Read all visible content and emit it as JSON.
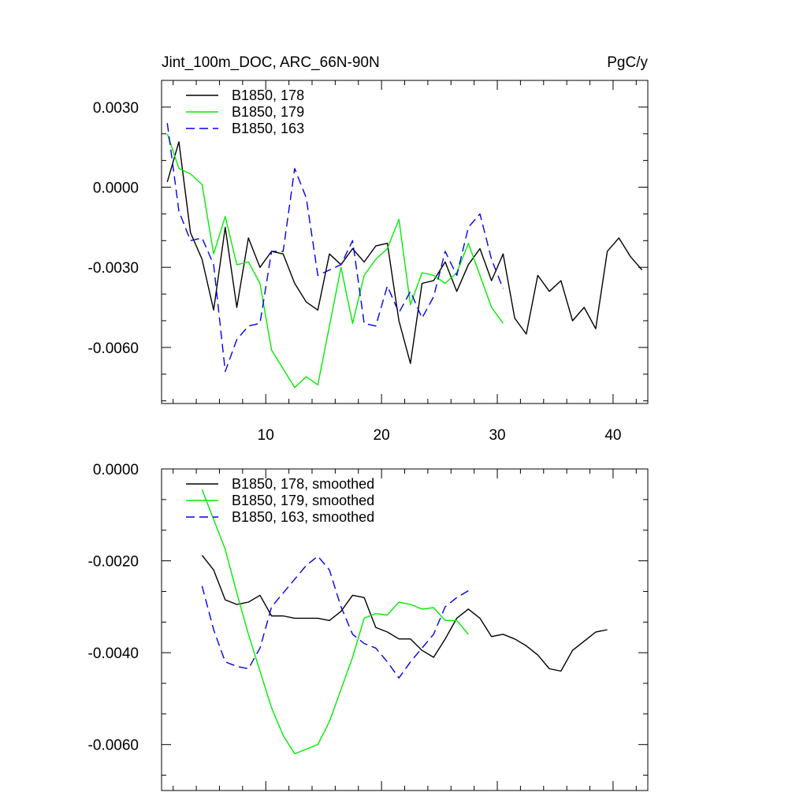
{
  "chart_data": [
    {
      "type": "line",
      "title": "Jint_100m_DOC, ARC_66N-90N",
      "units": "PgC/y",
      "xlabel": "",
      "ylabel": "",
      "xlim": [
        1,
        43
      ],
      "ylim": [
        -0.0081,
        0.004
      ],
      "xticks": [
        10,
        20,
        30,
        40
      ],
      "yticks": [
        0.003,
        0.0,
        -0.003,
        -0.006
      ],
      "ytick_labels": [
        "0.0030",
        "0.0000",
        "-0.0030",
        "-0.0060"
      ],
      "legend_position": "top-left",
      "series": [
        {
          "name": "B1850, 178",
          "color": "#000000",
          "dash": "solid",
          "x": [
            1.5,
            2.5,
            3.5,
            4.5,
            5.5,
            6.5,
            7.5,
            8.5,
            9.5,
            10.5,
            11.5,
            12.5,
            13.5,
            14.5,
            15.5,
            16.5,
            17.5,
            18.5,
            19.5,
            20.5,
            21.5,
            22.5,
            23.5,
            24.5,
            25.5,
            26.5,
            27.5,
            28.5,
            29.5,
            30.5,
            31.5,
            32.5,
            33.5,
            34.5,
            35.5,
            36.5,
            37.5,
            38.5,
            39.5,
            40.5,
            41.5,
            42.5
          ],
          "y": [
            0.0002,
            0.0017,
            -0.0017,
            -0.0027,
            -0.0046,
            -0.0015,
            -0.0045,
            -0.0019,
            -0.003,
            -0.0024,
            -0.0025,
            -0.0036,
            -0.0043,
            -0.0046,
            -0.0025,
            -0.0029,
            -0.0023,
            -0.0028,
            -0.0022,
            -0.0021,
            -0.005,
            -0.0066,
            -0.0036,
            -0.0035,
            -0.0028,
            -0.0039,
            -0.0029,
            -0.0023,
            -0.0035,
            -0.0025,
            -0.0049,
            -0.0055,
            -0.0033,
            -0.0039,
            -0.0035,
            -0.005,
            -0.0045,
            -0.0053,
            -0.0024,
            -0.0019,
            -0.0026,
            -0.0031
          ]
        },
        {
          "name": "B1850, 179",
          "color": "#00ee00",
          "dash": "solid",
          "x": [
            1.5,
            2.5,
            3.5,
            4.5,
            5.5,
            6.5,
            7.5,
            8.5,
            9.5,
            10.5,
            11.5,
            12.5,
            13.5,
            14.5,
            15.5,
            16.5,
            17.5,
            18.5,
            19.5,
            20.5,
            21.5,
            22.5,
            23.5,
            24.5,
            25.5,
            26.5,
            27.5,
            28.5,
            29.5,
            30.5
          ],
          "y": [
            0.002,
            0.0007,
            0.0005,
            0.0001,
            -0.0025,
            -0.0011,
            -0.0029,
            -0.0028,
            -0.0036,
            -0.0061,
            -0.0068,
            -0.0075,
            -0.0071,
            -0.0074,
            -0.0052,
            -0.003,
            -0.0051,
            -0.0033,
            -0.0027,
            -0.0023,
            -0.0012,
            -0.0044,
            -0.0032,
            -0.0033,
            -0.0036,
            -0.0032,
            -0.0021,
            -0.0033,
            -0.0045,
            -0.0051
          ]
        },
        {
          "name": "B1850, 163",
          "color": "#0000ee",
          "dash": "dashed",
          "x": [
            1.5,
            2.5,
            3.5,
            4.5,
            5.5,
            6.5,
            7.5,
            8.5,
            9.5,
            10.5,
            11.5,
            12.5,
            13.5,
            14.5,
            15.5,
            16.5,
            17.5,
            18.5,
            19.5,
            20.5,
            21.5,
            22.5,
            23.5,
            24.5,
            25.5,
            26.5,
            27.5,
            28.5,
            29.5,
            30.5
          ],
          "y": [
            0.0024,
            -0.0009,
            -0.002,
            -0.0019,
            -0.0029,
            -0.0069,
            -0.0057,
            -0.0052,
            -0.0051,
            -0.0024,
            -0.0024,
            0.0007,
            -0.0004,
            -0.0033,
            -0.0031,
            -0.0029,
            -0.002,
            -0.0051,
            -0.0052,
            -0.0037,
            -0.0047,
            -0.0039,
            -0.0049,
            -0.0041,
            -0.0024,
            -0.0033,
            -0.0015,
            -0.001,
            -0.0027,
            -0.0038
          ]
        }
      ]
    },
    {
      "type": "line",
      "title": "",
      "xlabel": "",
      "ylabel": "",
      "xlim": [
        1,
        43
      ],
      "ylim": [
        -0.007,
        0.0
      ],
      "xticks": [
        10,
        20,
        30,
        40
      ],
      "yticks": [
        0.0,
        -0.002,
        -0.004,
        -0.006
      ],
      "ytick_labels": [
        "0.0000",
        "-0.0020",
        "-0.0040",
        "-0.0060"
      ],
      "legend_position": "top-left",
      "series": [
        {
          "name": "B1850, 178, smoothed",
          "color": "#000000",
          "dash": "solid",
          "x": [
            4.5,
            5.5,
            6.5,
            7.5,
            8.5,
            9.5,
            10.5,
            11.5,
            12.5,
            13.5,
            14.5,
            15.5,
            16.5,
            17.5,
            18.5,
            19.5,
            20.5,
            21.5,
            22.5,
            23.5,
            24.5,
            25.5,
            26.5,
            27.5,
            28.5,
            29.5,
            30.5,
            31.5,
            32.5,
            33.5,
            34.5,
            35.5,
            36.5,
            37.5,
            38.5,
            39.5
          ],
          "y": [
            -0.00188,
            -0.0022,
            -0.00285,
            -0.00295,
            -0.0029,
            -0.00275,
            -0.0032,
            -0.0032,
            -0.00325,
            -0.00325,
            -0.00325,
            -0.0033,
            -0.0031,
            -0.00275,
            -0.0028,
            -0.00345,
            -0.00355,
            -0.0037,
            -0.0037,
            -0.00395,
            -0.0041,
            -0.0037,
            -0.00325,
            -0.00305,
            -0.00325,
            -0.00365,
            -0.0036,
            -0.0037,
            -0.00385,
            -0.00405,
            -0.00435,
            -0.0044,
            -0.00395,
            -0.00375,
            -0.00355,
            -0.0035
          ]
        },
        {
          "name": "B1850, 179, smoothed",
          "color": "#00ee00",
          "dash": "solid",
          "x": [
            4.5,
            5.5,
            6.5,
            7.5,
            8.5,
            9.5,
            10.5,
            11.5,
            12.5,
            13.5,
            14.5,
            15.5,
            16.5,
            17.5,
            18.5,
            19.5,
            20.5,
            21.5,
            22.5,
            23.5,
            24.5,
            25.5,
            26.5,
            27.5
          ],
          "y": [
            -0.00045,
            -0.0011,
            -0.00175,
            -0.0027,
            -0.0036,
            -0.0044,
            -0.0052,
            -0.0058,
            -0.0062,
            -0.0061,
            -0.006,
            -0.0055,
            -0.0048,
            -0.0041,
            -0.00325,
            -0.00315,
            -0.00318,
            -0.0029,
            -0.00295,
            -0.00305,
            -0.00302,
            -0.0033,
            -0.0033,
            -0.0036
          ]
        },
        {
          "name": "B1850, 163, smoothed",
          "color": "#0000ee",
          "dash": "dashed",
          "x": [
            4.5,
            5.5,
            6.5,
            7.5,
            8.5,
            9.5,
            10.5,
            11.5,
            12.5,
            13.5,
            14.5,
            15.5,
            16.5,
            17.5,
            18.5,
            19.5,
            20.5,
            21.5,
            22.5,
            23.5,
            24.5,
            25.5,
            26.5,
            27.5
          ],
          "y": [
            -0.00255,
            -0.0035,
            -0.0042,
            -0.0043,
            -0.00435,
            -0.0039,
            -0.003,
            -0.0027,
            -0.0024,
            -0.0021,
            -0.0019,
            -0.0022,
            -0.003,
            -0.0036,
            -0.0038,
            -0.0039,
            -0.0042,
            -0.00455,
            -0.0042,
            -0.0039,
            -0.0036,
            -0.003,
            -0.0028,
            -0.00265
          ]
        }
      ]
    }
  ]
}
